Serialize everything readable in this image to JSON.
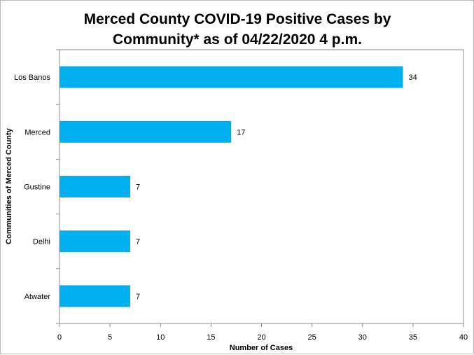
{
  "chart_data": {
    "type": "bar",
    "orientation": "horizontal",
    "title": "Merced County COVID-19 Positive Cases by Community* as of 04/22/2020  4 p.m.",
    "title_lines": [
      "Merced County COVID-19 Positive Cases by",
      "Community* as of 04/22/2020  4 p.m."
    ],
    "xlabel": "Number of Cases",
    "ylabel": "Communities of Merced County",
    "categories": [
      "Los Banos",
      "Merced",
      "Gustine",
      "Delhi",
      "Atwater"
    ],
    "values": [
      34,
      17,
      7,
      7,
      7
    ],
    "data_labels": [
      "34",
      "17",
      "7",
      "7",
      "7"
    ],
    "xlim": [
      0,
      40
    ],
    "xticks": [
      0,
      5,
      10,
      15,
      20,
      25,
      30,
      35,
      40
    ],
    "grid": false,
    "legend": "none",
    "bar_color": "#00B0F0"
  }
}
